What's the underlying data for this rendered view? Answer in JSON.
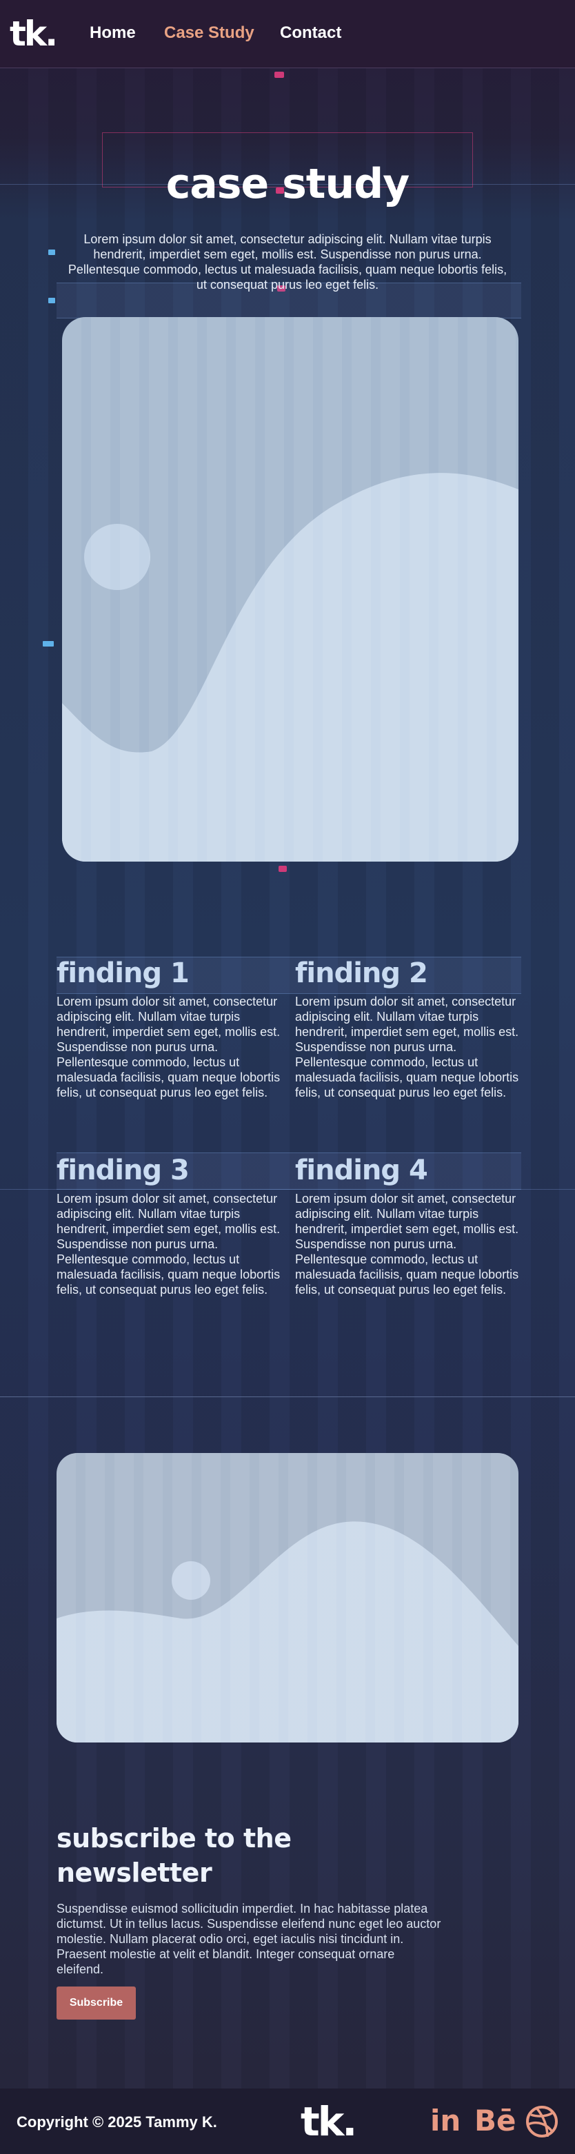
{
  "brand": {
    "logo": "tk."
  },
  "nav": {
    "items": [
      "Home",
      "Case Study",
      "Contact"
    ],
    "active": "Case Study"
  },
  "page": {
    "title": "case study",
    "intro": "Lorem ipsum dolor sit amet, consectetur adipiscing elit. Nullam vitae turpis hendrerit, imperdiet sem eget, mollis est. Suspendisse non purus urna. Pellentesque commodo, lectus ut malesuada facilisis, quam neque lobortis felis, ut consequat purus leo eget felis."
  },
  "images": {
    "hero": "image-placeholder",
    "promo": "image-placeholder"
  },
  "findings": [
    {
      "title": "finding 1",
      "text": "Lorem ipsum dolor sit amet, consectetur adipiscing elit. Nullam vitae turpis hendrerit, imperdiet sem eget, mollis est. Suspendisse non purus urna. Pellentesque commodo, lectus ut malesuada facilisis, quam neque lobortis felis, ut consequat purus leo eget felis."
    },
    {
      "title": "finding 2",
      "text": "Lorem ipsum dolor sit amet, consectetur adipiscing elit. Nullam vitae turpis hendrerit, imperdiet sem eget, mollis est. Suspendisse non purus urna. Pellentesque commodo, lectus ut malesuada facilisis, quam neque lobortis felis, ut consequat purus leo eget felis."
    },
    {
      "title": "finding 3",
      "text": "Lorem ipsum dolor sit amet, consectetur adipiscing elit. Nullam vitae turpis hendrerit, imperdiet sem eget, mollis est. Suspendisse non purus urna. Pellentesque commodo, lectus ut malesuada facilisis, quam neque lobortis felis, ut consequat purus leo eget felis."
    },
    {
      "title": "finding 4",
      "text": "Lorem ipsum dolor sit amet, consectetur adipiscing elit. Nullam vitae turpis hendrerit, imperdiet sem eget, mollis est. Suspendisse non purus urna. Pellentesque commodo, lectus ut malesuada facilisis, quam neque lobortis felis, ut consequat purus leo eget felis."
    }
  ],
  "newsletter": {
    "title": "subscribe to the newsletter",
    "text": "Suspendisse euismod sollicitudin imperdiet. In hac habitasse platea dictumst. Ut in tellus lacus. Suspendisse eleifend nunc eget leo auctor molestie. Nullam placerat odio orci, eget iaculis nisi tincidunt in. Praesent molestie at velit et blandit. Integer consequat ornare eleifend.",
    "button": "Subscribe"
  },
  "footer": {
    "copyright": "Copyright © 2025 Tammy K.",
    "logo": "tk.",
    "social": [
      "in",
      "Bē",
      "dribbble-icon"
    ]
  },
  "colors": {
    "accent": "#e9a283",
    "button": "#b46461",
    "heading": "#c9dbf1",
    "header_bg": "#281b34"
  }
}
